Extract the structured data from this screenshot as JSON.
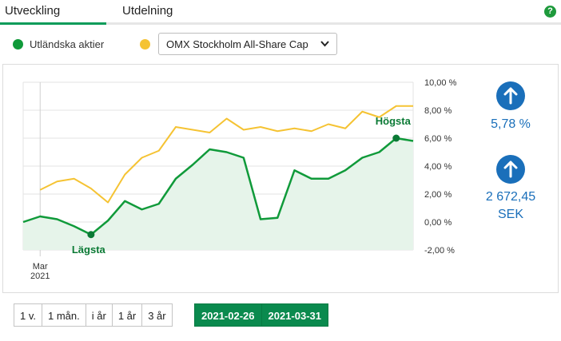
{
  "tabs": [
    {
      "label": "Utveckling",
      "active": true
    },
    {
      "label": "Utdelning",
      "active": false
    }
  ],
  "help_icon": "question-icon",
  "legend": {
    "primary": {
      "label": "Utländska aktier",
      "color": "#109a3a"
    },
    "compare": {
      "color": "#f5c333",
      "selected": "OMX Stockholm All-Share Cap"
    }
  },
  "stats": {
    "percent": {
      "icon": "arrow-up-icon",
      "value": "5,78 %"
    },
    "amount": {
      "icon": "arrow-up-icon",
      "value": "2 672,45",
      "unit": "SEK"
    }
  },
  "chart_data": {
    "type": "line",
    "yaxis": {
      "ticks": [
        "10,00 %",
        "8,00 %",
        "6,00 %",
        "4,00 %",
        "2,00 %",
        "0,00 %",
        "-2,00 %"
      ],
      "ylim": [
        -2,
        10
      ]
    },
    "xaxis": {
      "tick_label": [
        "Mar",
        "2021"
      ]
    },
    "x": [
      1,
      2,
      3,
      4,
      5,
      6,
      7,
      8,
      9,
      10,
      11,
      12,
      13,
      14,
      15,
      16,
      17,
      18,
      19,
      20,
      21,
      22,
      23,
      24
    ],
    "series": [
      {
        "name": "Utländska aktier",
        "color": "#109a3a",
        "values": [
          0.0,
          0.4,
          0.2,
          -0.3,
          -0.9,
          0.1,
          1.5,
          0.9,
          1.3,
          3.1,
          4.1,
          5.2,
          5.0,
          4.6,
          0.2,
          0.3,
          3.7,
          3.1,
          3.1,
          3.7,
          4.6,
          5.0,
          6.0,
          5.8
        ]
      },
      {
        "name": "OMX Stockholm All-Share Cap",
        "color": "#f5c333",
        "values": [
          null,
          2.3,
          2.9,
          3.1,
          2.4,
          1.4,
          3.4,
          4.6,
          5.1,
          6.8,
          6.6,
          6.4,
          7.4,
          6.6,
          6.8,
          6.5,
          6.7,
          6.5,
          7.0,
          6.7,
          7.9,
          7.5,
          8.3,
          8.3
        ]
      }
    ],
    "annotations": [
      {
        "label": "Lägsta",
        "x": 5,
        "y": -0.9
      },
      {
        "label": "Högsta",
        "x": 23,
        "y": 6.0
      }
    ],
    "grid": true
  },
  "periods": [
    "1 v.",
    "1 mån.",
    "i år",
    "1 år",
    "3 år"
  ],
  "date_range": {
    "from": "2021-02-26",
    "to": "2021-03-31"
  }
}
